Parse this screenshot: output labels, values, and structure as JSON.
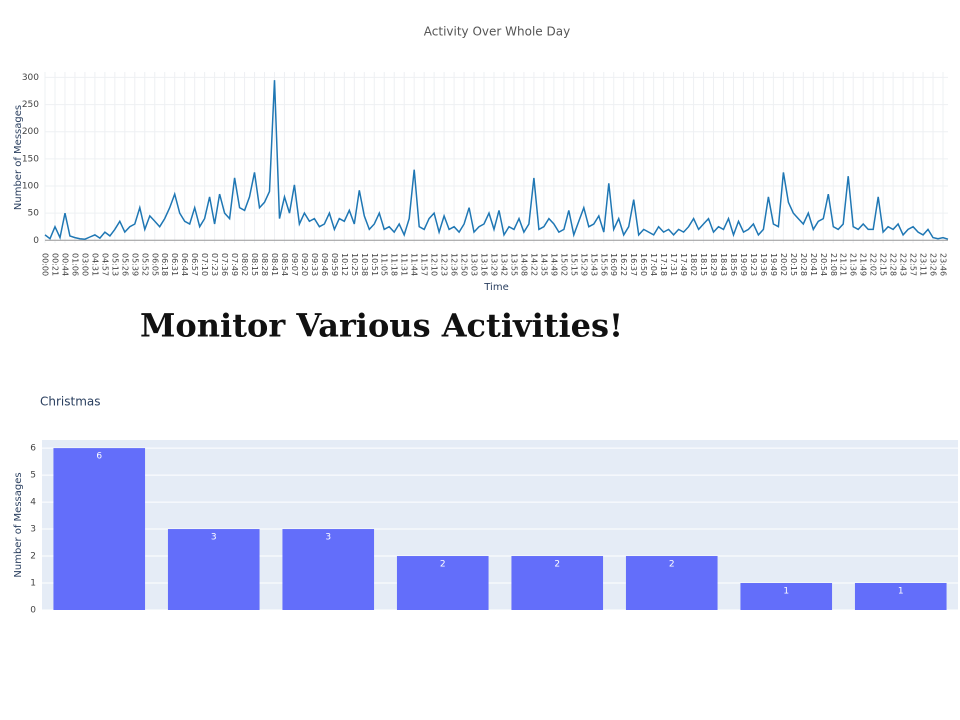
{
  "heading": "Monitor Various Activities!",
  "chart_data": [
    {
      "type": "line",
      "title": "Activity Over Whole Day",
      "x_label": "Time",
      "y_label": "Number of Messages",
      "color": "#1f77b4",
      "grid": true,
      "ylim": [
        -5,
        310
      ],
      "yticks": [
        0,
        50,
        100,
        150,
        200,
        250,
        300
      ],
      "categories": [
        "00:00",
        null,
        "00:21",
        null,
        "00:44",
        null,
        "01:06",
        null,
        "03:00",
        null,
        "04:31",
        null,
        "04:57",
        null,
        "05:13",
        null,
        "05:26",
        null,
        "05:39",
        null,
        "05:52",
        null,
        "06:05",
        null,
        "06:18",
        null,
        "06:31",
        null,
        "06:44",
        null,
        "06:57",
        null,
        "07:10",
        null,
        "07:23",
        null,
        "07:36",
        null,
        "07:49",
        null,
        "08:02",
        null,
        "08:15",
        null,
        "08:28",
        null,
        "08:41",
        null,
        "08:54",
        null,
        "09:07",
        null,
        "09:20",
        null,
        "09:33",
        null,
        "09:46",
        null,
        "09:59",
        null,
        "10:12",
        null,
        "10:25",
        null,
        "10:38",
        null,
        "10:51",
        null,
        "11:05",
        null,
        "11:18",
        null,
        "11:31",
        null,
        "11:44",
        null,
        "11:57",
        null,
        "12:10",
        null,
        "12:23",
        null,
        "12:36",
        null,
        "12:50",
        null,
        "13:03",
        null,
        "13:16",
        null,
        "13:29",
        null,
        "13:42",
        null,
        "13:55",
        null,
        "14:08",
        null,
        "14:22",
        null,
        "14:35",
        null,
        "14:49",
        null,
        "15:02",
        null,
        "15:15",
        null,
        "15:29",
        null,
        "15:43",
        null,
        "15:56",
        null,
        "16:09",
        null,
        "16:22",
        null,
        "16:37",
        null,
        "16:50",
        null,
        "17:04",
        null,
        "17:18",
        null,
        "17:31",
        null,
        "17:49",
        null,
        "18:02",
        null,
        "18:15",
        null,
        "18:29",
        null,
        "18:43",
        null,
        "18:56",
        null,
        "19:09",
        null,
        "19:23",
        null,
        "19:36",
        null,
        "19:49",
        null,
        "20:02",
        null,
        "20:15",
        null,
        "20:28",
        null,
        "20:41",
        null,
        "20:54",
        null,
        "21:08",
        null,
        "21:21",
        null,
        "21:36",
        null,
        "21:49",
        null,
        "22:02",
        null,
        "22:15",
        null,
        "22:28",
        null,
        "22:43",
        null,
        "22:57",
        null,
        "23:11",
        null,
        "23:26",
        null,
        "23:46",
        null
      ],
      "values": [
        10,
        3,
        25,
        5,
        50,
        8,
        5,
        3,
        2,
        6,
        10,
        4,
        15,
        8,
        20,
        35,
        15,
        25,
        30,
        60,
        20,
        45,
        35,
        25,
        40,
        60,
        85,
        50,
        35,
        30,
        60,
        25,
        40,
        80,
        30,
        85,
        50,
        40,
        115,
        60,
        55,
        80,
        125,
        60,
        70,
        90,
        295,
        40,
        80,
        50,
        102,
        30,
        50,
        35,
        40,
        25,
        30,
        50,
        20,
        40,
        35,
        55,
        30,
        92,
        45,
        20,
        30,
        50,
        20,
        25,
        15,
        30,
        10,
        40,
        130,
        25,
        20,
        40,
        50,
        15,
        45,
        20,
        25,
        15,
        30,
        60,
        15,
        25,
        30,
        50,
        20,
        55,
        10,
        25,
        20,
        40,
        15,
        30,
        115,
        20,
        25,
        40,
        30,
        15,
        20,
        55,
        10,
        35,
        60,
        25,
        30,
        45,
        15,
        105,
        20,
        40,
        10,
        25,
        75,
        10,
        20,
        15,
        10,
        25,
        15,
        20,
        10,
        20,
        15,
        25,
        40,
        20,
        30,
        40,
        15,
        25,
        20,
        40,
        10,
        35,
        15,
        20,
        30,
        10,
        20,
        80,
        30,
        25,
        125,
        70,
        50,
        40,
        30,
        50,
        20,
        35,
        40,
        85,
        25,
        20,
        30,
        118,
        25,
        20,
        30,
        20,
        20,
        80,
        15,
        25,
        20,
        30,
        10,
        20,
        25,
        15,
        10,
        20,
        5,
        3,
        5,
        2
      ]
    },
    {
      "type": "bar",
      "title": "Christmas",
      "y_label": "Number of Messages",
      "color": "#636efa",
      "grid": true,
      "ylim": [
        0,
        6.3
      ],
      "yticks": [
        0,
        1,
        2,
        3,
        4,
        5,
        6
      ],
      "categories": [
        null,
        null,
        null,
        null,
        null,
        null,
        null,
        null
      ],
      "values": [
        6,
        3,
        3,
        2,
        2,
        2,
        1,
        1
      ]
    }
  ]
}
